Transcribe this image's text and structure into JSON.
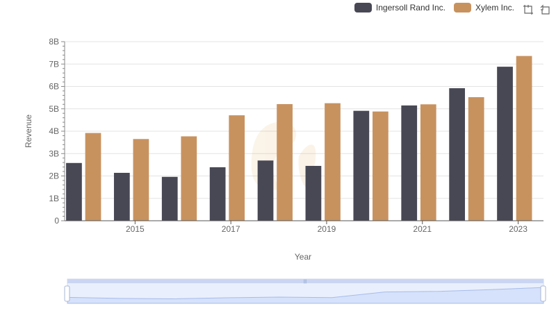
{
  "chart_data": {
    "type": "bar",
    "title": "",
    "xlabel": "Year",
    "ylabel": "Revenue",
    "x": [
      2014,
      2015,
      2016,
      2017,
      2018,
      2019,
      2020,
      2021,
      2022,
      2023
    ],
    "x_tick_labels": [
      "2015",
      "2017",
      "2019",
      "2021",
      "2023"
    ],
    "y_tick_labels": [
      "0",
      "1B",
      "2B",
      "3B",
      "4B",
      "5B",
      "6B",
      "7B",
      "8B"
    ],
    "ylim": [
      0,
      8000000000
    ],
    "series": [
      {
        "name": "Ingersoll Rand Inc.",
        "color": "#484855",
        "values": [
          2580000000,
          2140000000,
          1960000000,
          2390000000,
          2690000000,
          2450000000,
          4910000000,
          5150000000,
          5920000000,
          6880000000
        ]
      },
      {
        "name": "Xylem Inc.",
        "color": "#c8925f",
        "values": [
          3920000000,
          3650000000,
          3770000000,
          4710000000,
          5210000000,
          5250000000,
          4880000000,
          5200000000,
          5520000000,
          7360000000
        ]
      }
    ],
    "legend_position": "top-right",
    "grid": true
  },
  "toolbox": {
    "zoom_icon": "zoom-box-icon",
    "restore_icon": "restore-icon"
  }
}
